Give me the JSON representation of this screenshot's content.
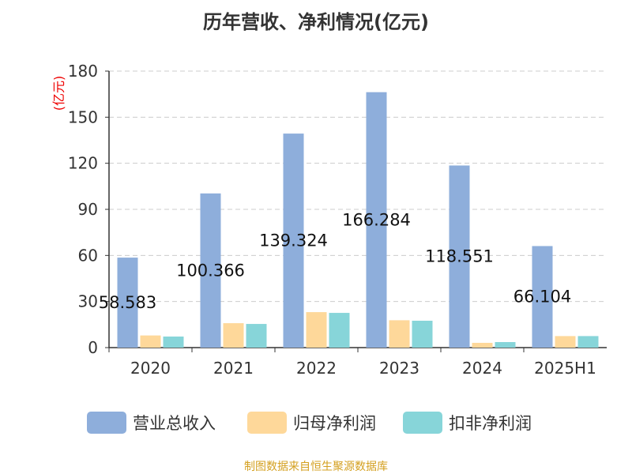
{
  "chart_data": {
    "type": "bar",
    "title": "历年营收、净利情况(亿元)",
    "ylabel": "(亿元)",
    "ylim": [
      0,
      180
    ],
    "yticks": [
      0,
      30,
      60,
      90,
      120,
      150,
      180
    ],
    "grid": true,
    "legend_position": "bottom",
    "categories": [
      "2020",
      "2021",
      "2022",
      "2023",
      "2024",
      "2025H1"
    ],
    "series": [
      {
        "name": "营业总收入",
        "color": "#8eaedb",
        "values": [
          58.583,
          100.366,
          139.324,
          166.284,
          118.551,
          66.104
        ],
        "labels": [
          "58.583",
          "100.366",
          "139.324",
          "166.284",
          "118.551",
          "66.104"
        ]
      },
      {
        "name": "归母净利润",
        "color": "#fed89a",
        "values": [
          7.9,
          15.9,
          23.1,
          17.8,
          3.1,
          7.5
        ]
      },
      {
        "name": "扣非净利润",
        "color": "#87d5d9",
        "values": [
          7.2,
          15.4,
          22.6,
          17.5,
          3.6,
          7.5
        ]
      }
    ]
  },
  "source": "制图数据来自恒生聚源数据库"
}
